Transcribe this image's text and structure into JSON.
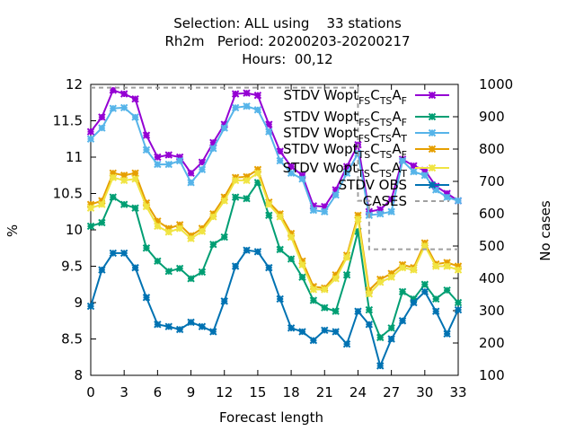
{
  "title_lines": [
    "Selection: ALL using    33 stations",
    "Rh2m   Period: 20200203-20200217",
    "Hours:  00,12"
  ],
  "chart_data": {
    "type": "line",
    "xlabel": "Forecast length",
    "ylabel": "%",
    "y2label": "No cases",
    "xlim": [
      0,
      33
    ],
    "ylim": [
      8,
      12
    ],
    "y2lim": [
      100,
      1000
    ],
    "xticks": [
      0,
      3,
      6,
      9,
      12,
      15,
      18,
      21,
      24,
      27,
      30,
      33
    ],
    "yticks": [
      8,
      8.5,
      9,
      9.5,
      10,
      10.5,
      11,
      11.5,
      12
    ],
    "y2ticks": [
      100,
      200,
      300,
      400,
      500,
      600,
      700,
      800,
      900,
      1000
    ],
    "grid": false,
    "legend_position": "top-right",
    "x": [
      0,
      1,
      2,
      3,
      4,
      5,
      6,
      7,
      8,
      9,
      10,
      11,
      12,
      13,
      14,
      15,
      16,
      17,
      18,
      19,
      20,
      21,
      22,
      23,
      24,
      25,
      26,
      27,
      28,
      29,
      30,
      31,
      32,
      33
    ],
    "series": [
      {
        "name": "STDV Wopt_FS C_TS A_F",
        "color": "#9400d3",
        "values": [
          11.35,
          11.55,
          11.92,
          11.87,
          11.8,
          11.3,
          11.0,
          11.03,
          11.0,
          10.78,
          10.93,
          11.2,
          11.45,
          11.87,
          11.88,
          11.85,
          11.45,
          11.08,
          10.87,
          10.75,
          10.33,
          10.32,
          10.55,
          10.87,
          11.17,
          10.25,
          10.28,
          10.42,
          10.97,
          10.88,
          10.82,
          10.6,
          10.5,
          10.4
        ]
      },
      {
        "name": "STDV Wopt_FS C_TS A_F",
        "color": "#009e73",
        "values": [
          10.05,
          10.1,
          10.45,
          10.35,
          10.3,
          9.75,
          9.57,
          9.43,
          9.47,
          9.33,
          9.42,
          9.8,
          9.9,
          10.45,
          10.43,
          10.65,
          10.2,
          9.73,
          9.6,
          9.35,
          9.03,
          8.93,
          8.88,
          9.38,
          9.98,
          8.9,
          8.52,
          8.65,
          9.15,
          9.05,
          9.25,
          9.05,
          9.17,
          9.0
        ]
      },
      {
        "name": "STDV Wopt_FS C_TS A_T",
        "color": "#56b4e9",
        "values": [
          11.25,
          11.4,
          11.67,
          11.68,
          11.55,
          11.1,
          10.9,
          10.9,
          10.95,
          10.65,
          10.83,
          11.12,
          11.4,
          11.68,
          11.7,
          11.65,
          11.35,
          10.95,
          10.78,
          10.7,
          10.27,
          10.25,
          10.48,
          10.78,
          11.05,
          10.2,
          10.22,
          10.25,
          10.95,
          10.8,
          10.75,
          10.55,
          10.45,
          10.4
        ]
      },
      {
        "name": "STDV Wopt_TS C_TS A_F",
        "color": "#e69f00",
        "values": [
          10.35,
          10.4,
          10.78,
          10.75,
          10.78,
          10.37,
          10.12,
          10.02,
          10.07,
          9.92,
          10.02,
          10.22,
          10.45,
          10.72,
          10.73,
          10.83,
          10.38,
          10.22,
          9.95,
          9.57,
          9.22,
          9.2,
          9.38,
          9.65,
          10.2,
          9.17,
          9.32,
          9.4,
          9.52,
          9.48,
          9.82,
          9.53,
          9.55,
          9.5
        ]
      },
      {
        "name": "STDV Wopt_TS C_TS A_T",
        "color": "#f0e442",
        "values": [
          10.3,
          10.35,
          10.72,
          10.68,
          10.7,
          10.32,
          10.05,
          9.97,
          10.02,
          9.88,
          9.98,
          10.18,
          10.4,
          10.68,
          10.68,
          10.78,
          10.35,
          10.18,
          9.9,
          9.52,
          9.18,
          9.18,
          9.33,
          9.62,
          10.15,
          9.12,
          9.28,
          9.35,
          9.48,
          9.45,
          9.78,
          9.5,
          9.5,
          9.45
        ]
      },
      {
        "name": "STDV OBS",
        "color": "#0072b2",
        "values": [
          8.95,
          9.45,
          9.68,
          9.68,
          9.48,
          9.07,
          8.7,
          8.67,
          8.63,
          8.73,
          8.67,
          8.6,
          9.02,
          9.5,
          9.72,
          9.7,
          9.48,
          9.05,
          8.65,
          8.6,
          8.48,
          8.62,
          8.6,
          8.43,
          8.88,
          8.7,
          8.13,
          8.5,
          8.75,
          9.0,
          9.15,
          8.88,
          8.57,
          8.9
        ]
      },
      {
        "name": "CASES",
        "color": "#a0a0a0",
        "axis": "y2",
        "values": [
          990,
          990,
          990,
          990,
          990,
          990,
          990,
          990,
          990,
          990,
          990,
          990,
          990,
          990,
          990,
          990,
          990,
          990,
          990,
          990,
          990,
          990,
          990,
          990,
          640,
          490,
          490,
          490,
          490,
          490,
          490,
          490,
          490,
          490
        ]
      }
    ],
    "legend_entries": [
      {
        "base": "STDV Wopt",
        "s1": "FS",
        "m": "C",
        "s2": "TS",
        "a": "A",
        "s3": "F"
      },
      {
        "base": "STDV Wopt",
        "s1": "FS",
        "m": "C",
        "s2": "TS",
        "a": "A",
        "s3": "F"
      },
      {
        "base": "STDV Wopt",
        "s1": "FS",
        "m": "C",
        "s2": "TS",
        "a": "A",
        "s3": "T"
      },
      {
        "base": "STDV Wopt",
        "s1": "TS",
        "m": "C",
        "s2": "TS",
        "a": "A",
        "s3": "F"
      },
      {
        "base": "STDV Wopt",
        "s1": "TS",
        "m": "C",
        "s2": "TS",
        "a": "A",
        "s3": "T"
      },
      {
        "base": "STDV OBS"
      },
      {
        "base": "CASES"
      }
    ]
  }
}
